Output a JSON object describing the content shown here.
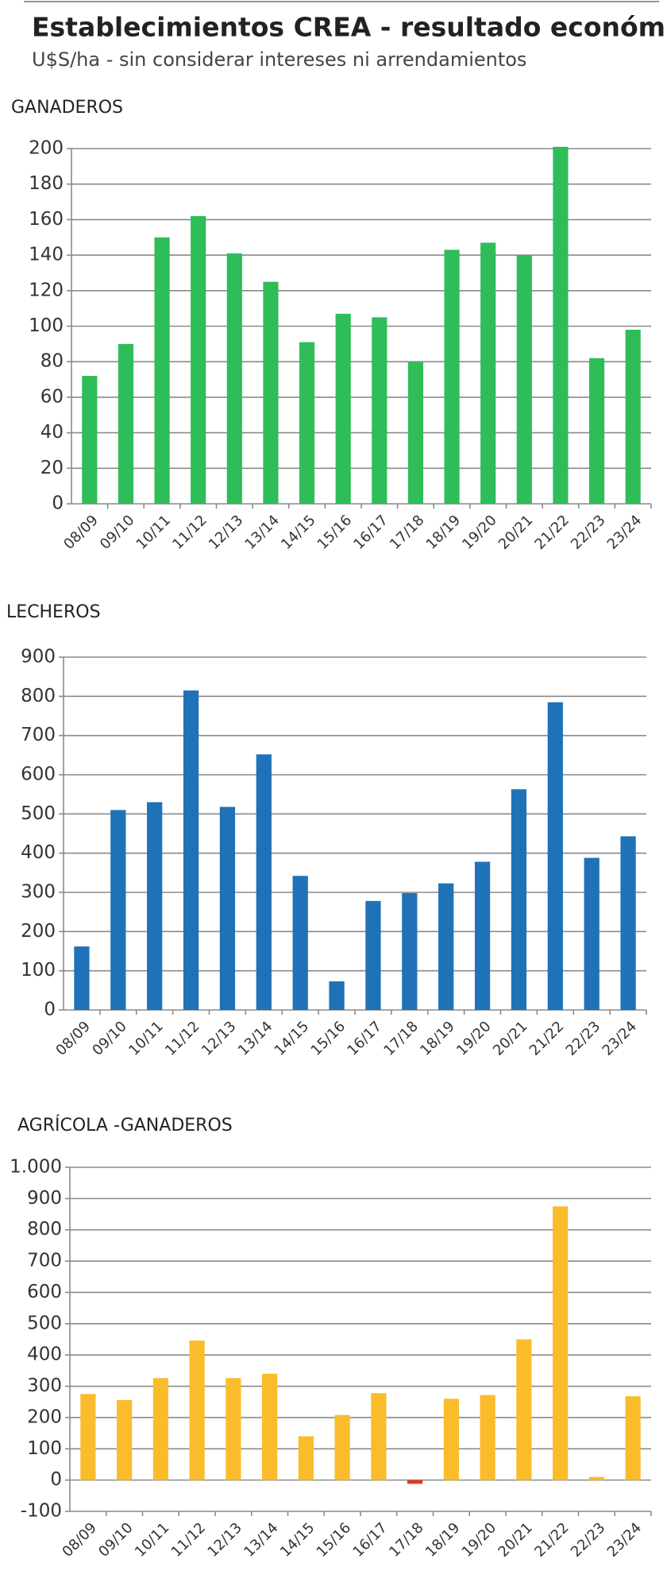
{
  "header": {
    "title": "Establecimientos CREA - resultado económico",
    "subtitle": "U$S/ha - sin considerar intereses ni arrendamientos"
  },
  "chart_data": [
    {
      "type": "bar",
      "title": "GANADEROS",
      "categories": [
        "08/09",
        "09/10",
        "10/11",
        "11/12",
        "12/13",
        "13/14",
        "14/15",
        "15/16",
        "16/17",
        "17/18",
        "18/19",
        "19/20",
        "20/21",
        "21/22",
        "22/23",
        "23/24"
      ],
      "values": [
        72,
        90,
        150,
        162,
        141,
        125,
        91,
        107,
        105,
        80,
        143,
        147,
        140,
        201,
        82,
        98
      ],
      "color": "#2ebd59",
      "ylim": [
        0,
        200
      ],
      "yticks": [
        0,
        20,
        40,
        60,
        80,
        100,
        120,
        140,
        160,
        180,
        200
      ],
      "grid": true
    },
    {
      "type": "bar",
      "title": "LECHEROS",
      "categories": [
        "08/09",
        "09/10",
        "10/11",
        "11/12",
        "12/13",
        "13/14",
        "14/15",
        "15/16",
        "16/17",
        "17/18",
        "18/19",
        "19/20",
        "20/21",
        "21/22",
        "22/23",
        "23/24"
      ],
      "values": [
        162,
        510,
        530,
        815,
        518,
        652,
        342,
        73,
        278,
        298,
        323,
        378,
        563,
        785,
        388,
        443
      ],
      "color": "#1f72b8",
      "ylim": [
        0,
        900
      ],
      "yticks": [
        0,
        100,
        200,
        300,
        400,
        500,
        600,
        700,
        800,
        900
      ],
      "grid": true
    },
    {
      "type": "bar",
      "title": "AGRÍCOLA -GANADEROS",
      "categories": [
        "08/09",
        "09/10",
        "10/11",
        "11/12",
        "12/13",
        "13/14",
        "14/15",
        "15/16",
        "16/17",
        "17/18",
        "18/19",
        "19/20",
        "20/21",
        "21/22",
        "22/23",
        "23/24"
      ],
      "values": [
        275,
        256,
        326,
        446,
        326,
        340,
        140,
        208,
        278,
        -12,
        260,
        272,
        450,
        875,
        10,
        268
      ],
      "color": "#fbbc2c",
      "negative_color": "#e03a2a",
      "ylim": [
        -100,
        1000
      ],
      "yticks": [
        -100,
        0,
        100,
        200,
        300,
        400,
        500,
        600,
        700,
        800,
        900,
        {
          "value": 1000,
          "label": "1.000"
        }
      ],
      "grid": true
    }
  ]
}
